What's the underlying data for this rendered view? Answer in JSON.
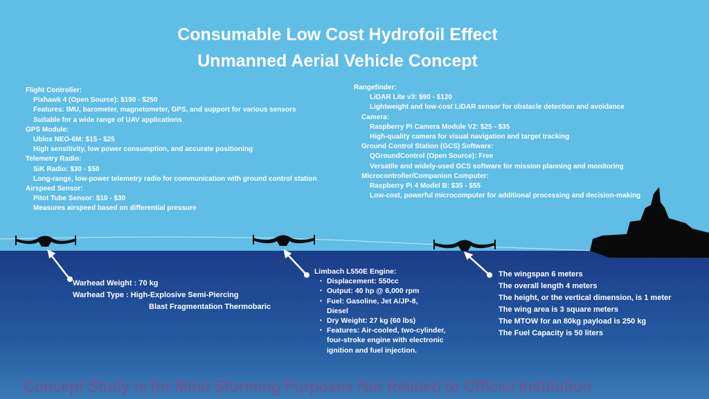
{
  "title": {
    "line1": "Consumable Low Cost Hydrofoil Effect",
    "line2": "Unmanned Aerial Vehicle Concept"
  },
  "left_list": [
    {
      "header": "Flight Controller:",
      "items": [
        "Pixhawk 4 (Open Source): $190 - $250",
        "Features: IMU, barometer, magnetometer, GPS, and support for various sensors",
        "Suitable for a wide range of UAV applications"
      ]
    },
    {
      "header": "GPS Module:",
      "items": [
        "Ublox NEO-6M: $15 - $25",
        "High sensitivity, low power consumption, and accurate positioning"
      ]
    },
    {
      "header": "Telemetry Radio:",
      "items": [
        "SiK Radio: $30 - $50",
        "Long-range, low-power telemetry radio for communication with ground control station"
      ]
    },
    {
      "header": "Airspeed Sensor:",
      "items": [
        "Pitot Tube Sensor: $10 - $30",
        "Measures airspeed based on differential pressure"
      ]
    }
  ],
  "right_list": [
    {
      "header": "Rangefinder:",
      "items": [
        "LiDAR Lite v3: $90 - $120",
        "Lightweight and low-cost LiDAR sensor for obstacle detection and avoidance"
      ]
    },
    {
      "header": "Camera:",
      "items": [
        "Raspberry Pi Camera Module V2: $25 - $35",
        "High-quality camera for visual navigation and target tracking"
      ]
    },
    {
      "header": "Ground Control Station (GCS) Software:",
      "items": [
        "QGroundControl (Open Source): Free",
        "Versatile and widely-used GCS software for mission planning and monitoring"
      ]
    },
    {
      "header": "Microcontroller/Companion Computer:",
      "items": [
        "Raspberry Pi 4 Model B: $35 - $55",
        "Low-cost, powerful microcomputer for additional processing and decision-making"
      ]
    }
  ],
  "warhead": {
    "weight": "Warhead Weight : 70 kg",
    "type": "Warhead Type : High-Explosive Semi-Piercing",
    "type2": "Blast Fragmentation Thermobaric"
  },
  "engine": {
    "header": "Limbach L550E Engine:",
    "items": [
      "Displacement: 550cc",
      "Output: 40 hp @ 6,000 rpm",
      "Fuel: Gasoline, Jet A/JP-8, Diesel",
      "Dry Weight: 27 kg (60 lbs)",
      "Features: Air-cooled, two-cylinder, four-stroke engine with electronic ignition and fuel injection."
    ]
  },
  "specs": [
    "The wingspan 6 meters",
    "The overall length 4 meters",
    "The height, or the vertical dimension, is 1 meter",
    "The wing area is 3 square meters",
    "The MTOW for an 80kg payload is 250 kg",
    "The Fuel Capacity is 50 liters"
  ],
  "footer": "Concept Study is for Mind Storming Purposes Not Related to Official Institution"
}
